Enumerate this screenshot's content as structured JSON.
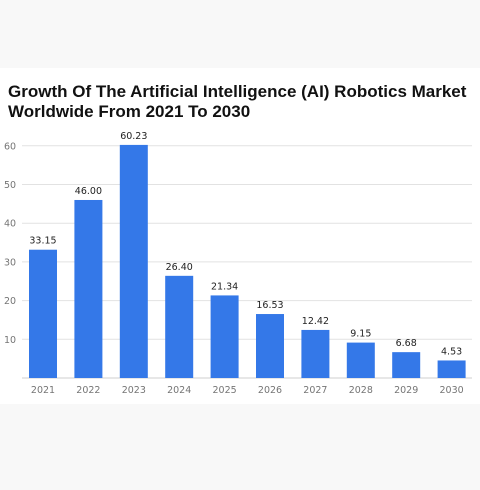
{
  "title_lines": [
    "Growth Of The Artificial Intelligence (AI) Robotics Market",
    "Worldwide From 2021 To 2030"
  ],
  "colors": {
    "bar": "#3478e8",
    "grid": "#e2e2e2",
    "page_bg": "#f8f8f8",
    "card_bg": "#ffffff"
  },
  "chart_data": {
    "type": "bar",
    "title": "Growth Of The Artificial Intelligence (AI) Robotics Market Worldwide From 2021 To 2030",
    "categories": [
      "2021",
      "2022",
      "2023",
      "2024",
      "2025",
      "2026",
      "2027",
      "2028",
      "2029",
      "2030"
    ],
    "values": [
      33.15,
      46.0,
      60.23,
      26.4,
      21.34,
      16.53,
      12.42,
      9.15,
      6.68,
      4.53
    ],
    "value_labels": [
      "33.15",
      "46.00",
      "60.23",
      "26.40",
      "21.34",
      "16.53",
      "12.42",
      "9.15",
      "6.68",
      "4.53"
    ],
    "yticks": [
      10,
      20,
      30,
      40,
      50,
      60
    ],
    "ylim": [
      0,
      60
    ],
    "grid": true,
    "xlabel": "",
    "ylabel": ""
  }
}
